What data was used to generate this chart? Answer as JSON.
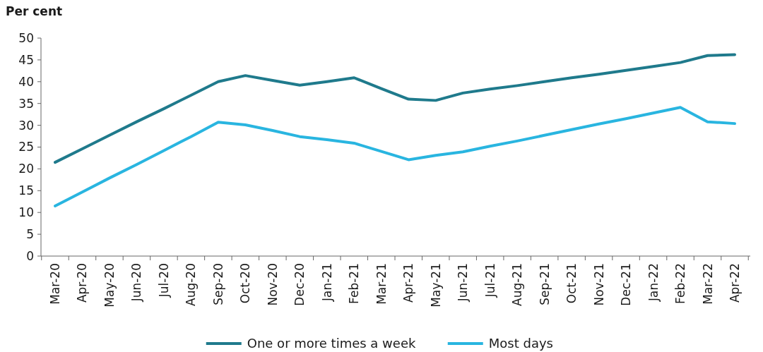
{
  "chart_data": {
    "type": "line",
    "ylabel": "Per cent",
    "categories": [
      "Mar-20",
      "Apr-20",
      "May-20",
      "Jun-20",
      "Jul-20",
      "Aug-20",
      "Sep-20",
      "Oct-20",
      "Nov-20",
      "Dec-20",
      "Jan-21",
      "Feb-21",
      "Mar-21",
      "Apr-21",
      "May-21",
      "Jun-21",
      "Jul-21",
      "Aug-21",
      "Sep-21",
      "Oct-21",
      "Nov-21",
      "Dec-21",
      "Jan-22",
      "Feb-22",
      "Mar-22",
      "Apr-22"
    ],
    "series": [
      {
        "name": "One or more times a week",
        "color": "#1f7a8c",
        "values": [
          21.5,
          24.6,
          27.7,
          30.8,
          33.8,
          36.9,
          40,
          41.4,
          40.3,
          39.2,
          40.0,
          40.9,
          38.4,
          36,
          35.7,
          37.4,
          38.3,
          39.1,
          40.0,
          40.9,
          41.7,
          42.6,
          43.5,
          44.4,
          46,
          46.2
        ]
      },
      {
        "name": "Most days",
        "color": "#29b5e0",
        "values": [
          11.5,
          14.7,
          17.9,
          21.0,
          24.2,
          27.4,
          30.7,
          30.1,
          28.8,
          27.4,
          26.7,
          25.9,
          24.0,
          22.1,
          23.1,
          23.9,
          25.2,
          26.4,
          27.7,
          29.0,
          30.3,
          31.5,
          32.8,
          34.1,
          30.8,
          30.4
        ]
      }
    ],
    "ylim": [
      0,
      50
    ],
    "yticks": [
      0,
      5,
      10,
      15,
      20,
      25,
      30,
      35,
      40,
      45,
      50
    ],
    "grid": false,
    "legend": "bottom",
    "marker": "none",
    "line_style": "solid"
  }
}
